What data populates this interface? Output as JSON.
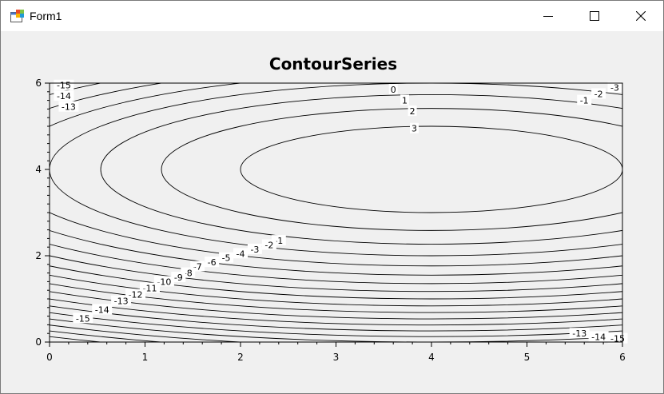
{
  "window": {
    "title": "Form1"
  },
  "colors": {
    "background": "#f0f0f0",
    "titlebar": "#ffffff",
    "line": "#000000"
  },
  "icons": {
    "app": "winforms-app-icon",
    "minimize": "minimize-icon",
    "maximize": "maximize-icon",
    "close": "close-icon"
  },
  "chart_data": {
    "type": "contour",
    "title": "ContourSeries",
    "xlabel": "",
    "ylabel": "",
    "xlim": [
      0,
      6
    ],
    "ylim": [
      0,
      6
    ],
    "x_ticks": [
      0,
      1,
      2,
      3,
      4,
      5,
      6
    ],
    "y_ticks": [
      0,
      2,
      4,
      6
    ],
    "x_minor_step": 0.2,
    "y_minor_step": 0.2,
    "function": "z = 4 - ((x - 4)^2 / 4 + (y - 4)^2)",
    "center": [
      4,
      4
    ],
    "levels": [
      -15,
      -14,
      -13,
      -12,
      -11,
      -10,
      -9,
      -8,
      -7,
      -6,
      -5,
      -4,
      -3,
      -2,
      -1,
      0,
      1,
      2,
      3
    ],
    "grid": false,
    "legend": "none",
    "labels": [
      {
        "text": "0",
        "x": 3.6,
        "y": 5.85
      },
      {
        "text": "1",
        "x": 3.72,
        "y": 5.6
      },
      {
        "text": "2",
        "x": 3.8,
        "y": 5.35
      },
      {
        "text": "3",
        "x": 3.82,
        "y": 4.95
      },
      {
        "text": "-1",
        "x": 2.4,
        "y": 2.35
      },
      {
        "text": "-2",
        "x": 2.3,
        "y": 2.25
      },
      {
        "text": "-3",
        "x": 2.15,
        "y": 2.15
      },
      {
        "text": "-4",
        "x": 2.0,
        "y": 2.05
      },
      {
        "text": "-5",
        "x": 1.85,
        "y": 1.95
      },
      {
        "text": "-6",
        "x": 1.7,
        "y": 1.85
      },
      {
        "text": "-7",
        "x": 1.55,
        "y": 1.75
      },
      {
        "text": "-8",
        "x": 1.45,
        "y": 1.6
      },
      {
        "text": "-9",
        "x": 1.35,
        "y": 1.5
      },
      {
        "text": "-10",
        "x": 1.2,
        "y": 1.4
      },
      {
        "text": "-11",
        "x": 1.05,
        "y": 1.25
      },
      {
        "text": "-12",
        "x": 0.9,
        "y": 1.1
      },
      {
        "text": "-13",
        "x": 0.75,
        "y": 0.95
      },
      {
        "text": "-14",
        "x": 0.55,
        "y": 0.75
      },
      {
        "text": "-15",
        "x": 0.35,
        "y": 0.55
      },
      {
        "text": "-1",
        "x": 5.6,
        "y": 5.6
      },
      {
        "text": "-2",
        "x": 5.75,
        "y": 5.75
      },
      {
        "text": "-3",
        "x": 5.92,
        "y": 5.9
      },
      {
        "text": "-15",
        "x": 0.15,
        "y": 5.95
      },
      {
        "text": "-14",
        "x": 0.15,
        "y": 5.7
      },
      {
        "text": "-13",
        "x": 0.2,
        "y": 5.45
      },
      {
        "text": "-13",
        "x": 5.55,
        "y": 0.2
      },
      {
        "text": "-14",
        "x": 5.75,
        "y": 0.12
      },
      {
        "text": "-15",
        "x": 5.95,
        "y": 0.08
      }
    ]
  }
}
